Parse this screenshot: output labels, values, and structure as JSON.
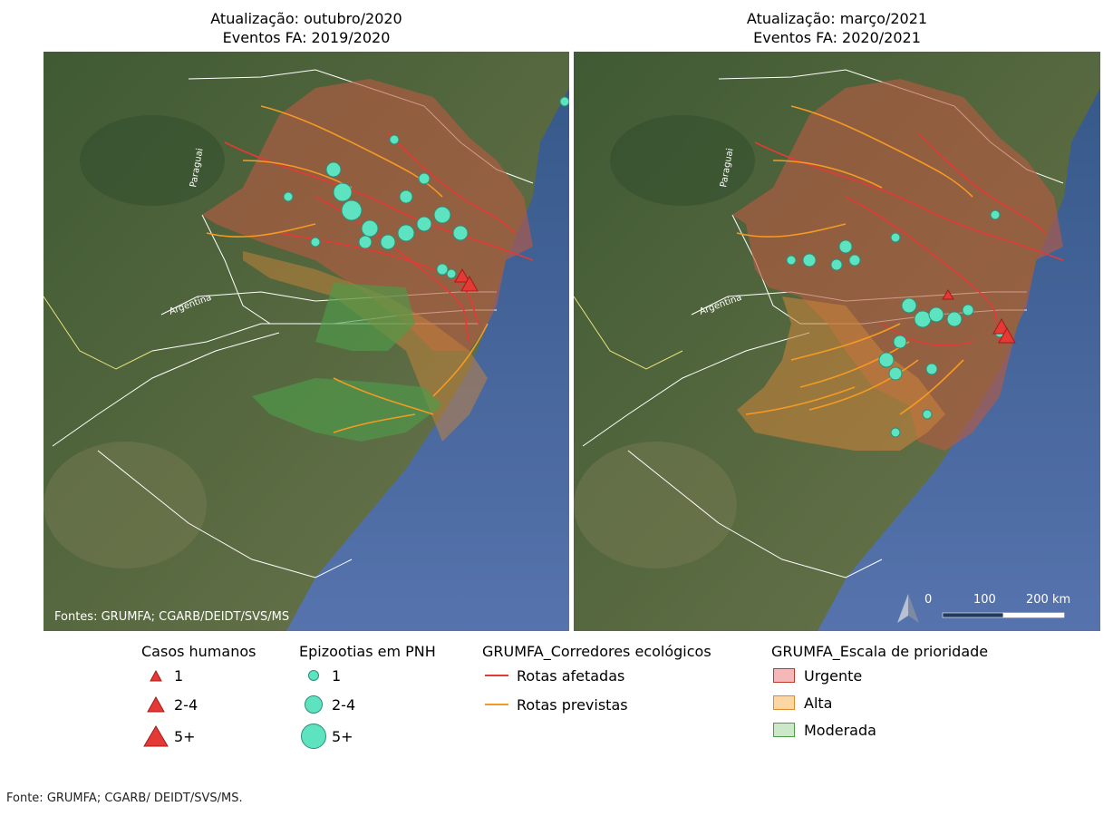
{
  "left_panel": {
    "title_line1": "Atualização: outubro/2020",
    "title_line2": "Eventos FA: 2019/2020",
    "credit": "Fontes: GRUMFA; CGARB/DEIDT/SVS/MS"
  },
  "right_panel": {
    "title_line1": "Atualização: março/2021",
    "title_line2": "Eventos FA: 2020/2021"
  },
  "map_labels": {
    "paraguai": "Paraguai",
    "argentina": "Argentina"
  },
  "scale_bar": {
    "t0": "0",
    "t1": "100",
    "t2": "200 km"
  },
  "legend": {
    "casos": {
      "title": "Casos humanos",
      "items": [
        "1",
        "2-4",
        "5+"
      ]
    },
    "epizootias": {
      "title": "Epizootias em PNH",
      "items": [
        "1",
        "2-4",
        "5+"
      ]
    },
    "corredores": {
      "title": "GRUMFA_Corredores ecológicos",
      "items": [
        "Rotas afetadas",
        "Rotas previstas"
      ]
    },
    "escala": {
      "title": "GRUMFA_Escala de prioridade",
      "items": [
        "Urgente",
        "Alta",
        "Moderada"
      ]
    }
  },
  "colors": {
    "urgente": "#f4b8b8",
    "alta": "#fcd7a4",
    "moderada": "#cbe8c8",
    "rotas_afetadas": "#e53935",
    "rotas_previstas": "#f59a23",
    "epizootia": "#5ee3c1",
    "casos": "#e53935",
    "ocean": "#4d6fa8"
  },
  "footer": "Fonte: GRUMFA; CGARB/ DEIDT/SVS/MS."
}
